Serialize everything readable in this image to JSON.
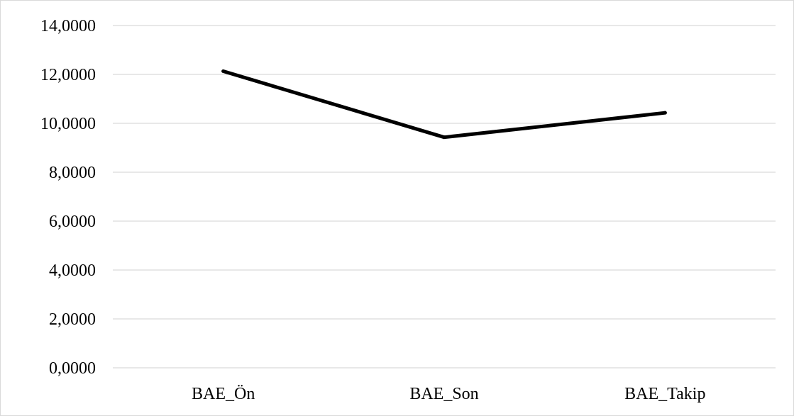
{
  "chart_data": {
    "type": "line",
    "categories": [
      "BAE_Ön",
      "BAE_Son",
      "BAE_Takip"
    ],
    "series": [
      {
        "values": [
          12.13,
          9.43,
          10.43
        ]
      }
    ],
    "ylim": [
      0,
      14
    ],
    "yticks": [
      0,
      2,
      4,
      6,
      8,
      10,
      12,
      14
    ],
    "ytick_labels": [
      "0,0000",
      "2,0000",
      "4,0000",
      "6,0000",
      "8,0000",
      "10,0000",
      "12,0000",
      "14,0000"
    ],
    "grid": true,
    "legend": "none",
    "colors": {
      "line": "#000000",
      "grid": "#d9d9d9",
      "border": "#d9d9d9"
    }
  }
}
